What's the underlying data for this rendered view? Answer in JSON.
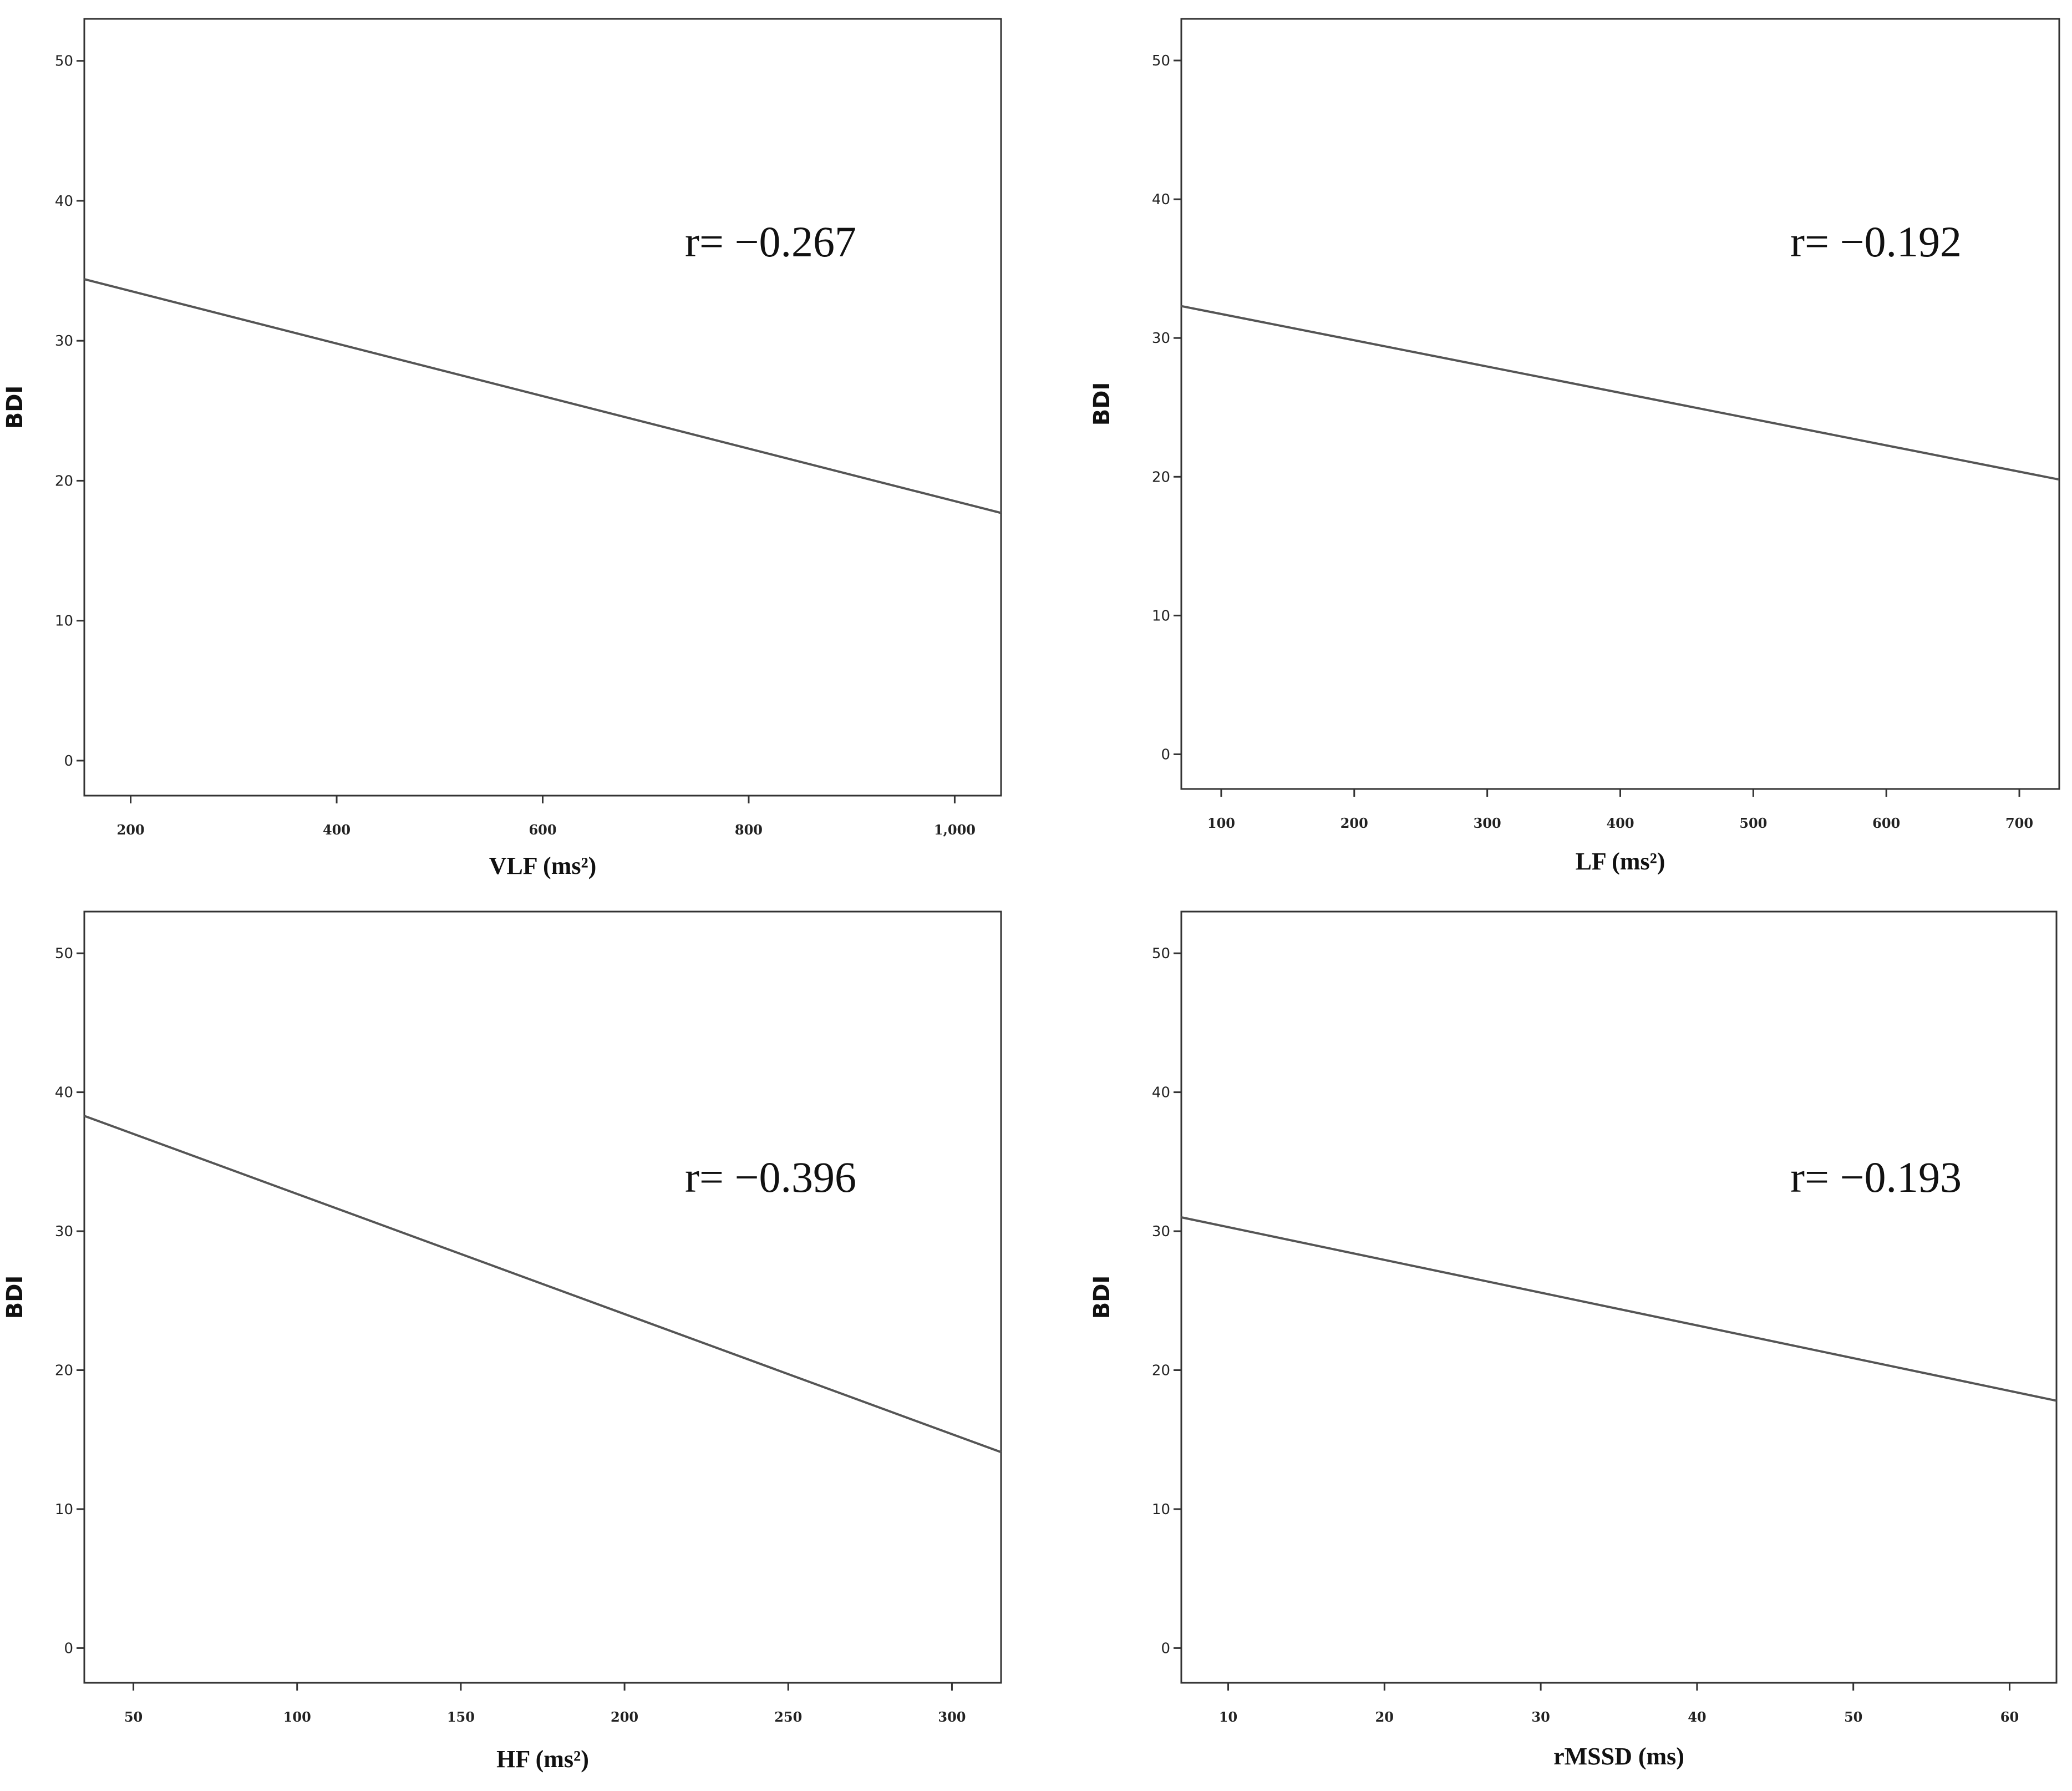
{
  "chart_data": [
    {
      "type": "line",
      "xlabel": "VLF (ms²)",
      "ylabel": "BDI",
      "annotation": "r= −0.267",
      "xlim": [
        155,
        1045
      ],
      "ylim": [
        -2.5,
        53
      ],
      "xticks": [
        200,
        400,
        600,
        800,
        1000
      ],
      "xtick_labels": [
        "200",
        "400",
        "600",
        "800",
        "1,000"
      ],
      "yticks": [
        0,
        10,
        20,
        30,
        40,
        50
      ],
      "ytick_labels": [
        "0",
        "10",
        "20",
        "30",
        "40",
        "50"
      ],
      "series": [
        {
          "x": [
            155,
            1045
          ],
          "y": [
            34.4,
            17.7
          ]
        }
      ]
    },
    {
      "type": "line",
      "xlabel": "LF (ms²)",
      "ylabel": "BDI",
      "annotation": "r= −0.192",
      "xlim": [
        70,
        730
      ],
      "ylim": [
        -2.5,
        53
      ],
      "xticks": [
        100,
        200,
        300,
        400,
        500,
        600,
        700
      ],
      "xtick_labels": [
        "100",
        "200",
        "300",
        "400",
        "500",
        "600",
        "700"
      ],
      "yticks": [
        0,
        10,
        20,
        30,
        40,
        50
      ],
      "ytick_labels": [
        "0",
        "10",
        "20",
        "30",
        "40",
        "50"
      ],
      "series": [
        {
          "x": [
            70,
            730
          ],
          "y": [
            32.3,
            19.8
          ]
        }
      ]
    },
    {
      "type": "line",
      "xlabel": "HF (ms²)",
      "ylabel": "BDI",
      "annotation": "r= −0.396",
      "xlim": [
        35,
        315
      ],
      "ylim": [
        -2.5,
        53
      ],
      "xticks": [
        50,
        100,
        150,
        200,
        250,
        300
      ],
      "xtick_labels": [
        "50",
        "100",
        "150",
        "200",
        "250",
        "300"
      ],
      "yticks": [
        0,
        10,
        20,
        30,
        40,
        50
      ],
      "ytick_labels": [
        "0",
        "10",
        "20",
        "30",
        "40",
        "50"
      ],
      "series": [
        {
          "x": [
            35,
            315
          ],
          "y": [
            38.3,
            14.1
          ]
        }
      ]
    },
    {
      "type": "line",
      "xlabel": "rMSSD (ms)",
      "ylabel": "BDI",
      "annotation": "r= −0.193",
      "xlim": [
        7,
        63
      ],
      "ylim": [
        -2.5,
        53
      ],
      "xticks": [
        10,
        20,
        30,
        40,
        50,
        60
      ],
      "xtick_labels": [
        "10",
        "20",
        "30",
        "40",
        "50",
        "60"
      ],
      "yticks": [
        0,
        10,
        20,
        30,
        40,
        50
      ],
      "ytick_labels": [
        "0",
        "10",
        "20",
        "30",
        "40",
        "50"
      ],
      "series": [
        {
          "x": [
            7,
            63
          ],
          "y": [
            31.0,
            17.8
          ]
        }
      ]
    }
  ]
}
